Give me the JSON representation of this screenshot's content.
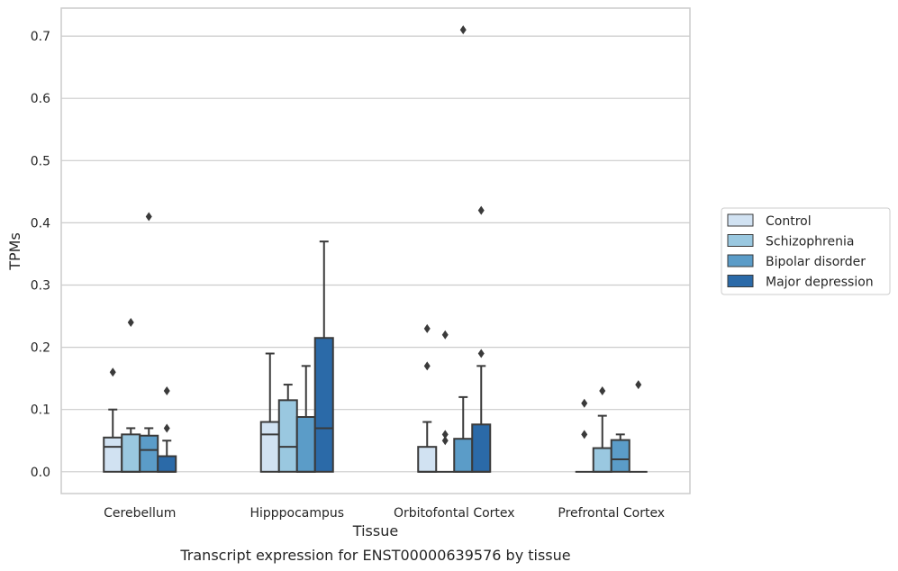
{
  "chart_data": {
    "type": "box",
    "xlabel": "Tissue",
    "ylabel": "TPMs",
    "caption": "Transcript expression for ENST00000639576 by tissue",
    "ylim": [
      -0.035,
      0.745
    ],
    "yticks": [
      0.0,
      0.1,
      0.2,
      0.3,
      0.4,
      0.5,
      0.6,
      0.7
    ],
    "ytick_labels": [
      "0.0",
      "0.1",
      "0.2",
      "0.3",
      "0.4",
      "0.5",
      "0.6",
      "0.7"
    ],
    "grid": "horizontal",
    "legend_position": "right",
    "categories": [
      "Cerebellum",
      "Hipppocampus",
      "Orbitofontal Cortex",
      "Prefrontal Cortex"
    ],
    "series": [
      {
        "name": "Control",
        "color": "#d1e2f2",
        "boxes": [
          {
            "whislo": 0.0,
            "q1": 0.0,
            "med": 0.04,
            "q3": 0.055,
            "whishi": 0.1,
            "fliers": [
              0.16
            ]
          },
          {
            "whislo": 0.0,
            "q1": 0.0,
            "med": 0.06,
            "q3": 0.08,
            "whishi": 0.19,
            "fliers": []
          },
          {
            "whislo": 0.0,
            "q1": 0.0,
            "med": 0.0,
            "q3": 0.04,
            "whishi": 0.08,
            "fliers": [
              0.17,
              0.23
            ]
          },
          {
            "whislo": 0.0,
            "q1": 0.0,
            "med": 0.0,
            "q3": 0.0,
            "whishi": 0.0,
            "fliers": [
              0.06,
              0.11
            ]
          }
        ]
      },
      {
        "name": "Schizophrenia",
        "color": "#9ac8e0",
        "boxes": [
          {
            "whislo": 0.0,
            "q1": 0.0,
            "med": 0.0,
            "q3": 0.06,
            "whishi": 0.07,
            "fliers": [
              0.24
            ]
          },
          {
            "whislo": 0.0,
            "q1": 0.0,
            "med": 0.04,
            "q3": 0.115,
            "whishi": 0.14,
            "fliers": []
          },
          {
            "whislo": 0.0,
            "q1": 0.0,
            "med": 0.0,
            "q3": 0.0,
            "whishi": 0.0,
            "fliers": [
              0.05,
              0.06,
              0.22
            ]
          },
          {
            "whislo": 0.0,
            "q1": 0.0,
            "med": 0.0,
            "q3": 0.038,
            "whishi": 0.09,
            "fliers": [
              0.13
            ]
          }
        ]
      },
      {
        "name": "Bipolar disorder",
        "color": "#5b9cc8",
        "boxes": [
          {
            "whislo": 0.0,
            "q1": 0.0,
            "med": 0.035,
            "q3": 0.058,
            "whishi": 0.07,
            "fliers": [
              0.41
            ]
          },
          {
            "whislo": 0.0,
            "q1": 0.0,
            "med": 0.0,
            "q3": 0.088,
            "whishi": 0.17,
            "fliers": []
          },
          {
            "whislo": 0.0,
            "q1": 0.0,
            "med": 0.0,
            "q3": 0.053,
            "whishi": 0.12,
            "fliers": [
              0.71
            ]
          },
          {
            "whislo": 0.0,
            "q1": 0.0,
            "med": 0.02,
            "q3": 0.051,
            "whishi": 0.06,
            "fliers": []
          }
        ]
      },
      {
        "name": "Major depression",
        "color": "#2b6aa8",
        "boxes": [
          {
            "whislo": 0.0,
            "q1": 0.0,
            "med": 0.0,
            "q3": 0.025,
            "whishi": 0.05,
            "fliers": [
              0.07,
              0.13
            ]
          },
          {
            "whislo": 0.0,
            "q1": 0.0,
            "med": 0.07,
            "q3": 0.215,
            "whishi": 0.37,
            "fliers": []
          },
          {
            "whislo": 0.0,
            "q1": 0.0,
            "med": 0.0,
            "q3": 0.076,
            "whishi": 0.17,
            "fliers": [
              0.19,
              0.42
            ]
          },
          {
            "whislo": 0.0,
            "q1": 0.0,
            "med": 0.0,
            "q3": 0.0,
            "whishi": 0.0,
            "fliers": [
              0.14
            ]
          }
        ]
      }
    ]
  }
}
